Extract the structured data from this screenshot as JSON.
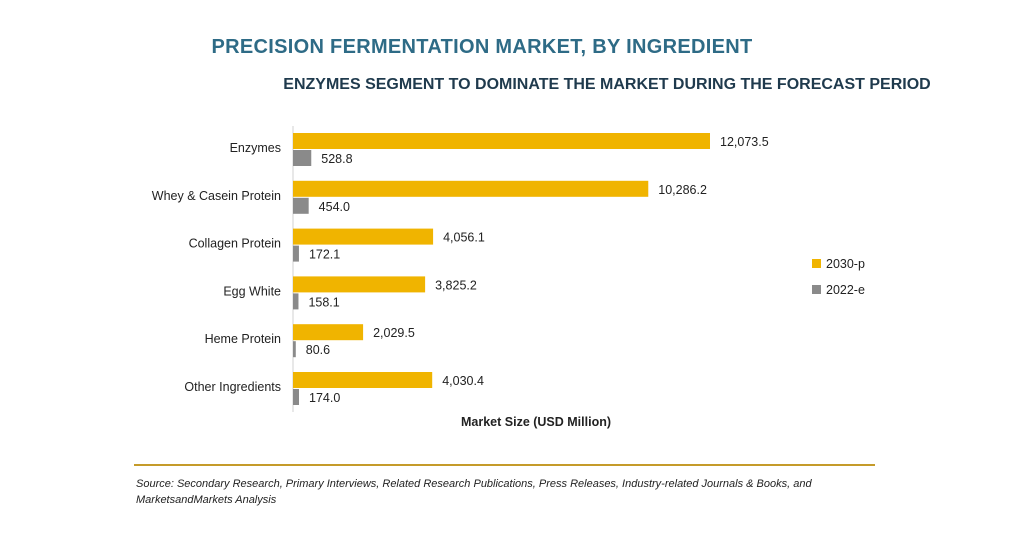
{
  "title": "PRECISION FERMENTATION MARKET, BY INGREDIENT",
  "subtitle": "ENZYMES SEGMENT TO DOMINATE THE MARKET DURING THE FORECAST PERIOD",
  "source": "Source: Secondary Research, Primary Interviews, Related Research Publications, Press Releases, Industry-related Journals & Books, and MarketsandMarkets Analysis",
  "colors": {
    "series_2030": "#f0b400",
    "series_2022": "#8a8a8a",
    "title": "#2e6b86",
    "rule": "#c59b2a"
  },
  "chart_data": {
    "type": "bar",
    "orientation": "horizontal",
    "categories": [
      "Enzymes",
      "Whey & Casein Protein",
      "Collagen Protein",
      "Egg White",
      "Heme Protein",
      "Other Ingredients"
    ],
    "series": [
      {
        "name": "2030-p",
        "values": [
          12073.5,
          10286.2,
          4056.1,
          3825.2,
          2029.5,
          4030.4
        ],
        "labels": [
          "12,073.5",
          "10,286.2",
          "4,056.1",
          "3,825.2",
          "2,029.5",
          "4,030.4"
        ],
        "color": "#f0b400"
      },
      {
        "name": "2022-e",
        "values": [
          528.8,
          454.0,
          172.1,
          158.1,
          80.6,
          174.0
        ],
        "labels": [
          "528.8",
          "454.0",
          "172.1",
          "158.1",
          "80.6",
          "174.0"
        ],
        "color": "#8a8a8a"
      }
    ],
    "xlabel": "Market Size (USD Million)",
    "ylabel": "",
    "xlim": [
      0,
      12073.5
    ],
    "grid": false,
    "legend_position": "right"
  }
}
